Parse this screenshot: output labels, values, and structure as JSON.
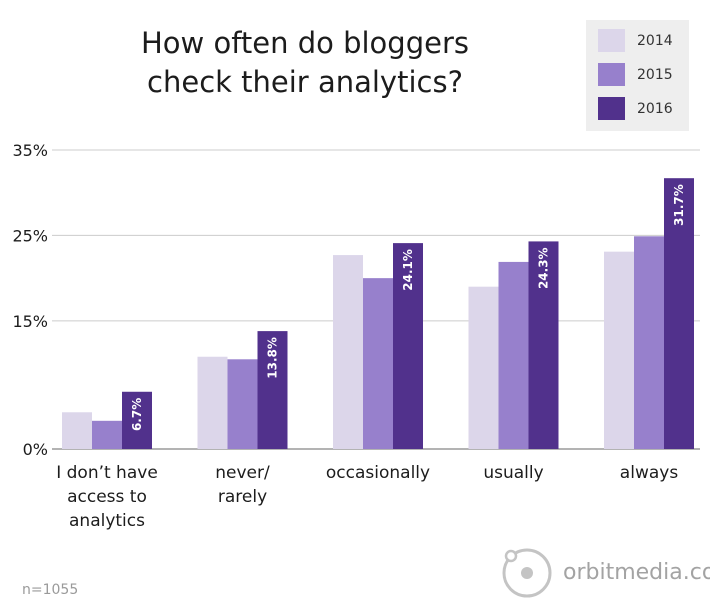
{
  "chart_data": {
    "type": "bar",
    "title": "How often do bloggers check their analytics?",
    "categories": [
      "I don't have access to analytics",
      "never/ rarely",
      "occasionally",
      "usually",
      "always"
    ],
    "series": [
      {
        "name": "2014",
        "color": "#dcd6ea",
        "values": [
          4.3,
          10.8,
          22.7,
          19.0,
          23.1
        ]
      },
      {
        "name": "2015",
        "color": "#9780cc",
        "values": [
          3.3,
          10.5,
          20.0,
          21.9,
          24.9
        ]
      },
      {
        "name": "2016",
        "color": "#51318c",
        "values": [
          6.7,
          13.8,
          24.1,
          24.3,
          31.7
        ],
        "data_labels": [
          "6.7%",
          "13.8%",
          "24.1%",
          "24.3%",
          "31.7%"
        ]
      }
    ],
    "y_axis": {
      "ticks": [
        0,
        15,
        25,
        35
      ],
      "tick_labels": [
        "0%",
        "15%",
        "25%",
        "35%"
      ],
      "range": [
        0,
        35
      ]
    },
    "grid": true,
    "legend_position": "top-right"
  },
  "legend": {
    "items": [
      {
        "label": "2014",
        "color": "#dcd6ea"
      },
      {
        "label": "2015",
        "color": "#9780cc"
      },
      {
        "label": "2016",
        "color": "#51318c"
      }
    ]
  },
  "footer": {
    "note": "n=1055",
    "brand": "orbitmedia.com",
    "brand_icon": "orbit-logo-icon"
  }
}
